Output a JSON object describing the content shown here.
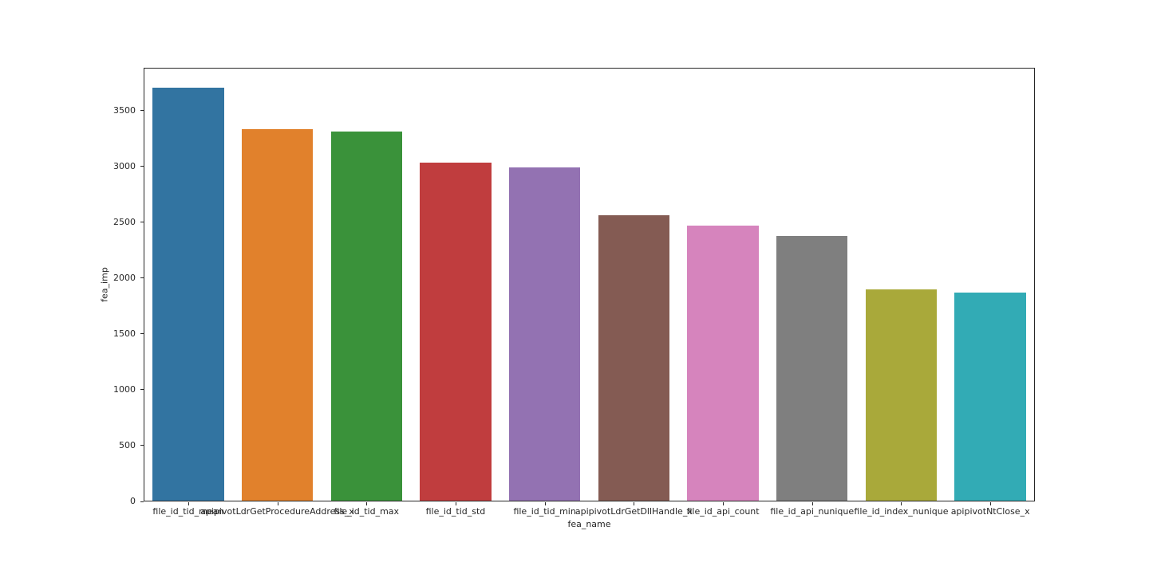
{
  "figure": {
    "background": "#ffffff",
    "axes_edge_color": "#262626",
    "text_color": "#262626"
  },
  "chart_data": {
    "type": "bar",
    "title": "",
    "xlabel": "fea_name",
    "ylabel": "fea_imp",
    "categories": [
      "file_id_tid_mean",
      "apipivotLdrGetProcedureAddress_x",
      "file_id_tid_max",
      "file_id_tid_std",
      "file_id_tid_min",
      "apipivotLdrGetDllHandle_x",
      "file_id_api_count",
      "file_id_api_nunique",
      "file_id_index_nunique",
      "apipivotNtClose_x"
    ],
    "values": [
      3700,
      3330,
      3305,
      3025,
      2985,
      2560,
      2465,
      2370,
      1890,
      1865
    ],
    "bar_colors": [
      "#3274a1",
      "#e1812c",
      "#3a923a",
      "#c03d3e",
      "#9372b2",
      "#845b53",
      "#d684bd",
      "#7f7f7f",
      "#a9a93a",
      "#32abb5"
    ],
    "ylim": [
      0,
      3885
    ],
    "yticks": [
      0,
      500,
      1000,
      1500,
      2000,
      2500,
      3000,
      3500
    ],
    "grid": false,
    "legend_position": "none",
    "bar_width_fraction": 0.8
  }
}
